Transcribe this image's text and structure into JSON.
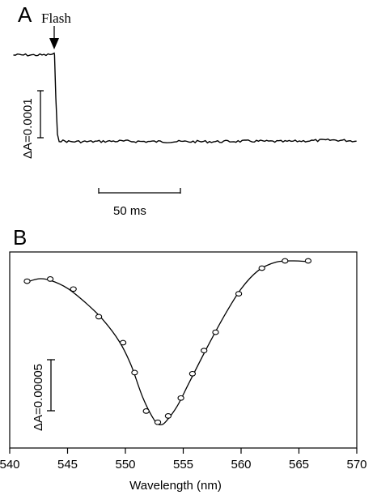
{
  "panel_a": {
    "letter": "A",
    "flash_label": "Flash",
    "scale_bar_label": "ΔA=0.0001",
    "time_bar_label": "50 ms"
  },
  "panel_b": {
    "letter": "B",
    "scale_bar_label": "ΔA=0.00005",
    "xlabel": "Wavelength (nm)",
    "x_ticks": [
      "540",
      "545",
      "550",
      "555",
      "560",
      "565",
      "570"
    ]
  },
  "chart_data": [
    {
      "type": "line",
      "title": "",
      "xlabel": "",
      "ylabel": "",
      "x_unit": "ms",
      "series": [
        {
          "x": [
            -25,
            -5,
            0,
            0.2,
            1,
            2,
            3,
            10,
            20,
            40,
            60,
            80,
            100,
            120,
            140,
            160,
            170,
            180,
            185
          ],
          "values": [
            0.00011,
            0.00011,
            0.000112,
            0.00011,
            3e-05,
            -4e-05,
            -5e-05,
            -5.2e-05,
            -5.2e-05,
            -5.1e-05,
            -5.2e-05,
            -5.2e-05,
            -5.2e-05,
            -5.1e-05,
            -5.2e-05,
            -5e-05,
            -4.9e-05,
            -5e-05,
            -5.1e-05
          ]
        }
      ],
      "annotations": [
        "Flash"
      ],
      "scale_bars": {
        "vertical": "ΔA=0.0001",
        "horizontal": "50 ms"
      }
    },
    {
      "type": "scatter",
      "title": "",
      "xlabel": "Wavelength (nm)",
      "ylabel": "",
      "xlim": [
        540,
        570
      ],
      "x_ticks": [
        540,
        545,
        550,
        555,
        560,
        565,
        570
      ],
      "series": [
        {
          "x": [
            541.5,
            543.5,
            545.5,
            547.7,
            549.8,
            550.8,
            551.8,
            552.8,
            553.7,
            554.8,
            555.8,
            556.8,
            557.8,
            559.8,
            561.8,
            563.8,
            565.8
          ],
          "values": [
            -1.09e-05,
            -9.7e-06,
            -1.51e-05,
            -2.99e-05,
            -4.38e-05,
            -5.98e-05,
            -8.04e-05,
            -8.64e-05,
            -8.3e-05,
            -7.34e-05,
            -6.04e-05,
            -4.8e-05,
            -3.82e-05,
            -1.76e-05,
            -3.9e-06,
            0.0,
            0.0
          ]
        },
        {
          "style": "fit-curve",
          "x": [
            541.5,
            542.5,
            543.5,
            545.0,
            546.5,
            548.0,
            549.5,
            550.5,
            551.5,
            552.5,
            553.0,
            553.5,
            554.5,
            555.5,
            557.0,
            558.5,
            560.0,
            561.5,
            563.0,
            564.5,
            565.8
          ],
          "values": [
            -1.13e-05,
            -9.6e-06,
            -1.04e-05,
            -1.47e-05,
            -2.21e-05,
            -3.11e-05,
            -4.34e-05,
            -5.6e-05,
            -7.31e-05,
            -8.53e-05,
            -8.77e-05,
            -8.6e-05,
            -7.75e-05,
            -6.53e-05,
            -4.71e-05,
            -2.99e-05,
            -1.5e-05,
            -5.1e-06,
            -7e-07,
            0.0,
            -4e-07
          ]
        }
      ],
      "scale_bars": {
        "vertical": "ΔA=0.00005"
      }
    }
  ]
}
